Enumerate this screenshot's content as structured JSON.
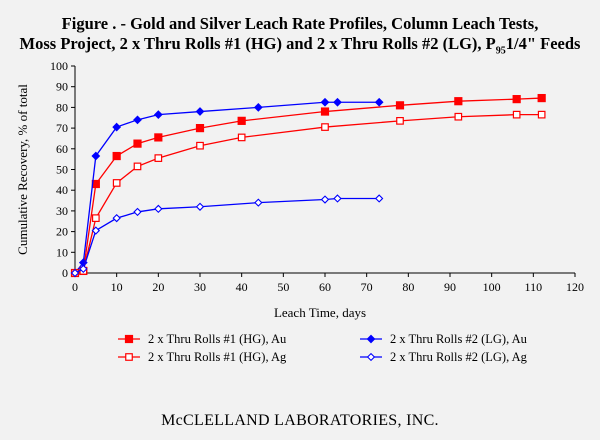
{
  "title": {
    "line1": "Figure . - Gold and Silver Leach Rate Profiles, Column Leach Tests,",
    "line2_prefix": "Moss Project, 2 x Thru Rolls #1 (HG) and 2 x Thru Rolls #2 (LG), P",
    "line2_sub": "95",
    "line2_suffix": "1/4\" Feeds"
  },
  "footer": "McCLELLAND LABORATORIES, INC.",
  "colors": {
    "red": "#ff0000",
    "blue": "#0000ff",
    "background": "#f2f2f2"
  },
  "chart_data": {
    "type": "line",
    "xlabel": "Leach Time, days",
    "ylabel": "Cumulative Recovery, % of total",
    "xlim": [
      0,
      120
    ],
    "ylim": [
      0,
      100
    ],
    "x_ticks": [
      0,
      10,
      20,
      30,
      40,
      50,
      60,
      70,
      80,
      90,
      100,
      110,
      120
    ],
    "y_ticks": [
      0,
      10,
      20,
      30,
      40,
      50,
      60,
      70,
      80,
      90,
      100
    ],
    "grid": false,
    "legend_position": "bottom",
    "series": [
      {
        "name": "2 x Thru Rolls #1 (HG), Au",
        "color": "#ff0000",
        "marker": "square-filled",
        "x": [
          0,
          2,
          5,
          10,
          15,
          20,
          30,
          40,
          60,
          78,
          92,
          106,
          112
        ],
        "y": [
          0,
          1,
          43,
          56.5,
          62.5,
          65.5,
          70,
          73.5,
          78,
          81,
          83,
          84,
          84.5
        ]
      },
      {
        "name": "2 x Thru Rolls #2 (LG), Au",
        "color": "#0000ff",
        "marker": "diamond-filled",
        "x": [
          0,
          2,
          5,
          10,
          15,
          20,
          30,
          44,
          60,
          63,
          73
        ],
        "y": [
          0,
          5,
          56.5,
          70.5,
          74,
          76.5,
          78,
          80,
          82.5,
          82.5,
          82.5
        ]
      },
      {
        "name": "2 x Thru Rolls #1 (HG), Ag",
        "color": "#ff0000",
        "marker": "square-open",
        "x": [
          0,
          2,
          5,
          10,
          15,
          20,
          30,
          40,
          60,
          78,
          92,
          106,
          112
        ],
        "y": [
          0,
          1,
          26.5,
          43.5,
          51.5,
          55.5,
          61.5,
          65.5,
          70.5,
          73.5,
          75.5,
          76.5,
          76.5
        ]
      },
      {
        "name": "2 x Thru Rolls #2 (LG), Ag",
        "color": "#0000ff",
        "marker": "diamond-open",
        "x": [
          0,
          2,
          5,
          10,
          15,
          20,
          30,
          44,
          60,
          63,
          73
        ],
        "y": [
          0,
          2,
          20.5,
          26.5,
          29.5,
          31,
          32,
          34,
          35.5,
          36,
          36
        ]
      }
    ]
  }
}
